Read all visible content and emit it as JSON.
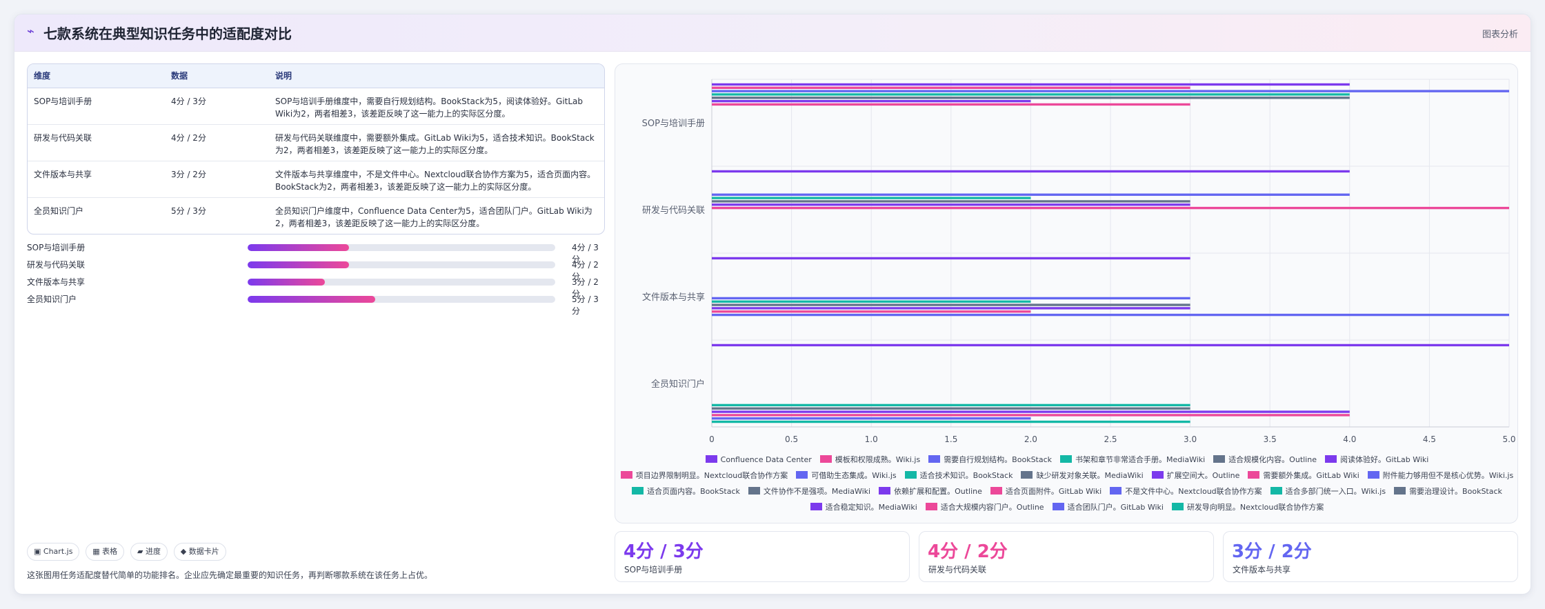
{
  "header": {
    "title": "七款系统在典型知识任务中的适配度对比",
    "tag": "图表分析"
  },
  "table": {
    "headers": [
      "维度",
      "数据",
      "说明"
    ],
    "rows": [
      {
        "dim": "SOP与培训手册",
        "data": "4分 / 3分",
        "desc": "SOP与培训手册维度中，需要自行规划结构。BookStack为5，阅读体验好。GitLab Wiki为2，两者相差3，该差距反映了这一能力上的实际区分度。"
      },
      {
        "dim": "研发与代码关联",
        "data": "4分 / 2分",
        "desc": "研发与代码关联维度中，需要额外集成。GitLab Wiki为5，适合技术知识。BookStack为2，两者相差3，该差距反映了这一能力上的实际区分度。"
      },
      {
        "dim": "文件版本与共享",
        "data": "3分 / 2分",
        "desc": "文件版本与共享维度中，不是文件中心。Nextcloud联合协作方案为5，适合页面内容。BookStack为2，两者相差3，该差距反映了这一能力上的实际区分度。"
      },
      {
        "dim": "全员知识门户",
        "data": "5分 / 3分",
        "desc": "全员知识门户维度中，Confluence Data Center为5，适合团队门户。GitLab Wiki为2，两者相差3，该差距反映了这一能力上的实际区分度。"
      }
    ]
  },
  "progress": [
    {
      "label": "SOP与培训手册",
      "value": "4分 / 3分",
      "fraction": 0.33
    },
    {
      "label": "研发与代码关联",
      "value": "4分 / 2分",
      "fraction": 0.33
    },
    {
      "label": "文件版本与共享",
      "value": "3分 / 2分",
      "fraction": 0.25
    },
    {
      "label": "全员知识门户",
      "value": "5分 / 3分",
      "fraction": 0.415
    }
  ],
  "chips": [
    {
      "icon": "▣",
      "label": "Chart.js"
    },
    {
      "icon": "▦",
      "label": "表格"
    },
    {
      "icon": "▰",
      "label": "进度"
    },
    {
      "icon": "◆",
      "label": "数据卡片"
    }
  ],
  "note": "这张图用任务适配度替代简单的功能排名。企业应先确定最重要的知识任务，再判断哪款系统在该任务上占优。",
  "kpis": [
    {
      "value": "4分 / 3分",
      "label": "SOP与培训手册",
      "color": "#7c3aed"
    },
    {
      "value": "4分 / 2分",
      "label": "研发与代码关联",
      "color": "#ec4899"
    },
    {
      "value": "3分 / 2分",
      "label": "文件版本与共享",
      "color": "#6366f1"
    }
  ],
  "chart_data": {
    "type": "bar",
    "orientation": "horizontal",
    "categories": [
      "SOP与培训手册",
      "研发与代码关联",
      "文件版本与共享",
      "全员知识门户"
    ],
    "xlim": [
      0,
      5
    ],
    "xticks": [
      "0",
      "0.5",
      "1.0",
      "1.5",
      "2.0",
      "2.5",
      "3.0",
      "3.5",
      "4.0",
      "4.5",
      "5.0"
    ],
    "grid": true,
    "legend_position": "bottom",
    "series": [
      {
        "name": "Confluence Data Center",
        "color": "#7c3aed",
        "values": [
          4,
          4,
          3,
          5
        ]
      },
      {
        "name": "模板和权限成熟。Wiki.js",
        "color": "#ec4899",
        "values": [
          3,
          null,
          null,
          null
        ]
      },
      {
        "name": "需要自行规划结构。BookStack",
        "color": "#6366f1",
        "values": [
          5,
          null,
          null,
          null
        ]
      },
      {
        "name": "书架和章节非常适合手册。MediaWiki",
        "color": "#14b8a6",
        "values": [
          4,
          null,
          null,
          null
        ]
      },
      {
        "name": "适合规模化内容。Outline",
        "color": "#64748b",
        "values": [
          4,
          null,
          null,
          null
        ]
      },
      {
        "name": "阅读体验好。GitLab Wiki",
        "color": "#7c3aed",
        "values": [
          2,
          null,
          null,
          null
        ]
      },
      {
        "name": "项目边界限制明显。Nextcloud联合协作方案",
        "color": "#ec4899",
        "values": [
          3,
          null,
          null,
          null
        ]
      },
      {
        "name": "可借助生态集成。Wiki.js",
        "color": "#6366f1",
        "values": [
          null,
          4,
          null,
          null
        ]
      },
      {
        "name": "适合技术知识。BookStack",
        "color": "#14b8a6",
        "values": [
          null,
          2,
          null,
          null
        ]
      },
      {
        "name": "缺少研发对象关联。MediaWiki",
        "color": "#64748b",
        "values": [
          null,
          3,
          null,
          null
        ]
      },
      {
        "name": "扩展空间大。Outline",
        "color": "#7c3aed",
        "values": [
          null,
          3,
          null,
          null
        ]
      },
      {
        "name": "需要额外集成。GitLab Wiki",
        "color": "#ec4899",
        "values": [
          null,
          5,
          null,
          null
        ]
      },
      {
        "name": "附件能力够用但不是核心优势。Wiki.js",
        "color": "#6366f1",
        "values": [
          null,
          null,
          3,
          null
        ]
      },
      {
        "name": "适合页面内容。BookStack",
        "color": "#14b8a6",
        "values": [
          null,
          null,
          2,
          null
        ]
      },
      {
        "name": "文件协作不是强项。MediaWiki",
        "color": "#64748b",
        "values": [
          null,
          null,
          3,
          null
        ]
      },
      {
        "name": "依赖扩展和配置。Outline",
        "color": "#7c3aed",
        "values": [
          null,
          null,
          3,
          null
        ]
      },
      {
        "name": "适合页面附件。GitLab Wiki",
        "color": "#ec4899",
        "values": [
          null,
          null,
          2,
          null
        ]
      },
      {
        "name": "不是文件中心。Nextcloud联合协作方案",
        "color": "#6366f1",
        "values": [
          null,
          null,
          5,
          null
        ]
      },
      {
        "name": "适合多部门统一入口。Wiki.js",
        "color": "#14b8a6",
        "values": [
          null,
          null,
          null,
          3
        ]
      },
      {
        "name": "需要治理设计。BookStack",
        "color": "#64748b",
        "values": [
          null,
          null,
          null,
          3
        ]
      },
      {
        "name": "适合稳定知识。MediaWiki",
        "color": "#7c3aed",
        "values": [
          null,
          null,
          null,
          4
        ]
      },
      {
        "name": "适合大规模内容门户。Outline",
        "color": "#ec4899",
        "values": [
          null,
          null,
          null,
          4
        ]
      },
      {
        "name": "适合团队门户。GitLab Wiki",
        "color": "#6366f1",
        "values": [
          null,
          null,
          null,
          2
        ]
      },
      {
        "name": "研发导向明显。Nextcloud联合协作方案",
        "color": "#14b8a6",
        "values": [
          null,
          null,
          null,
          3
        ]
      }
    ]
  }
}
